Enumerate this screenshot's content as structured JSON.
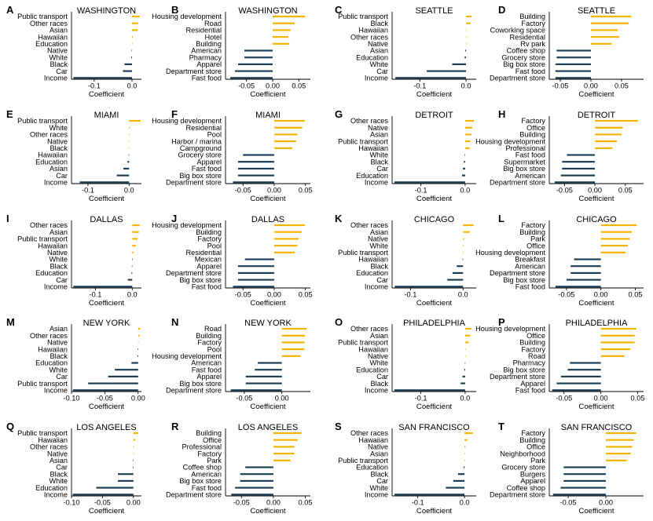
{
  "colors": {
    "positive": "#f5b400",
    "negative": "#1d3f55",
    "axis": "#000000",
    "text": "#000000"
  },
  "chart_data": [
    {
      "letter": "A",
      "title": "WASHINGTON",
      "type": "bar",
      "xlabel": "Coefficient",
      "xlim": [
        -0.16,
        0.025
      ],
      "ticks": [
        -0.1,
        0.0
      ],
      "tick_labels": [
        "-0.1",
        "0.0"
      ],
      "categories": [
        "Public transport",
        "Other races",
        "Asian",
        "Hawaiian",
        "Education",
        "Native",
        "White",
        "Black",
        "Car",
        "Income"
      ],
      "values": [
        0.02,
        0.016,
        0.015,
        0.002,
        0.001,
        -0.001,
        -0.002,
        -0.02,
        -0.024,
        -0.155
      ]
    },
    {
      "letter": "B",
      "title": "WASHINGTON",
      "type": "bar",
      "xlabel": "Coefficient",
      "xlim": [
        -0.09,
        0.072
      ],
      "ticks": [
        -0.05,
        0.0,
        0.05
      ],
      "tick_labels": [
        "-0.05",
        "0.00",
        "0.05"
      ],
      "categories": [
        "Housing development",
        "Road",
        "Residential",
        "Hotel",
        "Building",
        "American",
        "Pharmacy",
        "Apparel",
        "Department store",
        "Fast food"
      ],
      "values": [
        0.062,
        0.042,
        0.034,
        0.03,
        0.032,
        -0.054,
        -0.054,
        -0.066,
        -0.072,
        -0.081
      ]
    },
    {
      "letter": "C",
      "title": "SEATTLE",
      "type": "bar",
      "xlabel": "Coefficient",
      "xlim": [
        -0.16,
        0.022
      ],
      "ticks": [
        -0.1,
        0.0
      ],
      "tick_labels": [
        "-0.1",
        "0.0"
      ],
      "categories": [
        "Public transport",
        "Black",
        "Hawaiian",
        "Other races",
        "Native",
        "Asian",
        "Education",
        "White",
        "Car",
        "Income"
      ],
      "values": [
        0.012,
        0.01,
        0.001,
        0.0005,
        0.0,
        -0.002,
        -0.003,
        -0.03,
        -0.085,
        -0.153
      ]
    },
    {
      "letter": "D",
      "title": "SEATTLE",
      "type": "bar",
      "xlabel": "Coefficient",
      "xlim": [
        -0.068,
        0.086
      ],
      "ticks": [
        -0.05,
        0.0,
        0.05
      ],
      "tick_labels": [
        "-0.05",
        "0.00",
        "0.05"
      ],
      "categories": [
        "Building",
        "Factory",
        "Coworking space",
        "Residential",
        "Rv park",
        "Coffee shop",
        "Grocery store",
        "Big box store",
        "Fast food",
        "Department store"
      ],
      "values": [
        0.066,
        0.062,
        0.044,
        0.046,
        0.034,
        -0.056,
        -0.056,
        -0.058,
        -0.058,
        -0.058
      ]
    },
    {
      "letter": "E",
      "title": "MIAMI",
      "type": "bar",
      "xlabel": "Coefficient",
      "xlim": [
        -0.14,
        0.03
      ],
      "ticks": [
        -0.1,
        0.0
      ],
      "tick_labels": [
        "-0.1",
        "0.0"
      ],
      "categories": [
        "Public transport",
        "White",
        "Other races",
        "Native",
        "Black",
        "Hawaiian",
        "Education",
        "Asian",
        "Car",
        "Income"
      ],
      "values": [
        0.028,
        0.002,
        0.0015,
        0.001,
        0.0005,
        -0.001,
        -0.004,
        -0.014,
        -0.03,
        -0.12
      ]
    },
    {
      "letter": "F",
      "title": "MIAMI",
      "type": "bar",
      "xlabel": "Coefficient",
      "xlim": [
        -0.078,
        0.058
      ],
      "ticks": [
        -0.05,
        0.0,
        0.05
      ],
      "tick_labels": [
        "-0.05",
        "0.00",
        "0.05"
      ],
      "categories": [
        "Housing development",
        "Residential",
        "Pool",
        "Harbor / marina",
        "Campground",
        "Grocery store",
        "Apparel",
        "Fast food",
        "Big box store",
        "Department store"
      ],
      "values": [
        0.049,
        0.045,
        0.037,
        0.035,
        0.029,
        -0.05,
        -0.058,
        -0.058,
        -0.058,
        -0.066
      ]
    },
    {
      "letter": "G",
      "title": "DETROIT",
      "type": "bar",
      "xlabel": "Coefficient",
      "xlim": [
        -0.165,
        0.025
      ],
      "ticks": [
        -0.1,
        0.0
      ],
      "tick_labels": [
        "-0.1",
        "0.0"
      ],
      "categories": [
        "Other races",
        "Native",
        "Asian",
        "Public transport",
        "Hawaiian",
        "White",
        "Black",
        "Car",
        "Education",
        "Income"
      ],
      "values": [
        0.02,
        0.016,
        0.014,
        0.012,
        0.01,
        -0.001,
        -0.003,
        -0.005,
        -0.007,
        -0.16
      ]
    },
    {
      "letter": "H",
      "title": "DETROIT",
      "type": "bar",
      "xlabel": "Coefficient",
      "xlim": [
        -0.075,
        0.08
      ],
      "ticks": [
        -0.05,
        0.0,
        0.05
      ],
      "tick_labels": [
        "-0.05",
        "0.00",
        "0.05"
      ],
      "categories": [
        "Factory",
        "Office",
        "Building",
        "Housing development",
        "Professional",
        "Fast food",
        "Supermarket",
        "Big box store",
        "American",
        "Department store"
      ],
      "values": [
        0.071,
        0.046,
        0.044,
        0.036,
        0.029,
        -0.046,
        -0.054,
        -0.054,
        -0.056,
        -0.066
      ]
    },
    {
      "letter": "I",
      "title": "DALLAS",
      "type": "bar",
      "xlabel": "Coefficient",
      "xlim": [
        -0.165,
        0.025
      ],
      "ticks": [
        -0.1,
        0.0
      ],
      "tick_labels": [
        "-0.1",
        "0.0"
      ],
      "categories": [
        "Other races",
        "Asian",
        "Public transport",
        "Hawaiian",
        "Native",
        "White",
        "Black",
        "Education",
        "Car",
        "Income"
      ],
      "values": [
        0.02,
        0.018,
        0.014,
        0.01,
        0.004,
        -0.0005,
        -0.001,
        -0.002,
        -0.012,
        -0.16
      ]
    },
    {
      "letter": "J",
      "title": "DALLAS",
      "type": "bar",
      "xlabel": "Coefficient",
      "xlim": [
        -0.078,
        0.058
      ],
      "ticks": [
        -0.05,
        0.0,
        0.05
      ],
      "tick_labels": [
        "-0.05",
        "0.00",
        "0.05"
      ],
      "categories": [
        "Housing development",
        "Building",
        "Factory",
        "Pool",
        "Residential",
        "Mexican",
        "Apparel",
        "Department store",
        "Big box store",
        "Fast food"
      ],
      "values": [
        0.049,
        0.044,
        0.039,
        0.037,
        0.033,
        -0.047,
        -0.058,
        -0.058,
        -0.058,
        -0.066
      ]
    },
    {
      "letter": "K",
      "title": "CHICAGO",
      "type": "bar",
      "xlabel": "Coefficient",
      "xlim": [
        -0.135,
        0.025
      ],
      "ticks": [
        -0.1,
        0.0
      ],
      "tick_labels": [
        "-0.1",
        "0.0"
      ],
      "categories": [
        "Other races",
        "Asian",
        "Native",
        "White",
        "Public transport",
        "Hawaiian",
        "Black",
        "Education",
        "Car",
        "Income"
      ],
      "values": [
        0.02,
        0.013,
        0.002,
        0.001,
        0.0005,
        -0.001,
        -0.012,
        -0.02,
        -0.03,
        -0.13
      ]
    },
    {
      "letter": "L",
      "title": "CHICAGO",
      "type": "bar",
      "xlabel": "Coefficient",
      "xlim": [
        -0.075,
        0.062
      ],
      "ticks": [
        -0.05,
        0.0,
        0.05
      ],
      "tick_labels": [
        "-0.05",
        "0.00",
        "0.05"
      ],
      "categories": [
        "Factory",
        "Building",
        "Park",
        "Office",
        "Housing development",
        "Breakfast",
        "American",
        "Department store",
        "Big box store",
        "Fast food"
      ],
      "values": [
        0.052,
        0.045,
        0.042,
        0.039,
        0.036,
        -0.039,
        -0.044,
        -0.044,
        -0.05,
        -0.066
      ]
    },
    {
      "letter": "M",
      "title": "NEW YORK",
      "type": "bar",
      "xlabel": "Coefficient",
      "xlim": [
        -0.1,
        0.005
      ],
      "ticks": [
        -0.1,
        -0.05,
        0.0
      ],
      "tick_labels": [
        "-0.10",
        "-0.05",
        "0.00"
      ],
      "categories": [
        "Asian",
        "Other races",
        "Native",
        "Hawaiian",
        "Black",
        "Education",
        "White",
        "Car",
        "Public transport",
        "Income"
      ],
      "values": [
        0.003,
        0.002,
        0.0,
        -0.0005,
        -0.001,
        -0.01,
        -0.035,
        -0.045,
        -0.075,
        -0.098
      ]
    },
    {
      "letter": "N",
      "title": "NEW YORK",
      "type": "bar",
      "xlabel": "Coefficient",
      "xlim": [
        -0.075,
        0.038
      ],
      "ticks": [
        -0.05,
        0.0
      ],
      "tick_labels": [
        "-0.05",
        "0.00"
      ],
      "categories": [
        "Road",
        "Building",
        "Factory",
        "Pool",
        "Housing development",
        "American",
        "Fast food",
        "Apparel",
        "Big box store",
        "Department store"
      ],
      "values": [
        0.033,
        0.031,
        0.03,
        0.03,
        0.025,
        -0.032,
        -0.036,
        -0.048,
        -0.048,
        -0.068
      ]
    },
    {
      "letter": "O",
      "title": "PHILADELPHIA",
      "type": "bar",
      "xlabel": "Coefficient",
      "xlim": [
        -0.165,
        0.025
      ],
      "ticks": [
        -0.1,
        0.0
      ],
      "tick_labels": [
        "-0.1",
        "0.0"
      ],
      "categories": [
        "Other races",
        "Asian",
        "Public transport",
        "Hawaiian",
        "Native",
        "White",
        "Education",
        "Car",
        "Black",
        "Income"
      ],
      "values": [
        0.014,
        0.012,
        0.008,
        0.001,
        0.0005,
        -0.0005,
        -0.002,
        -0.006,
        -0.01,
        -0.16
      ]
    },
    {
      "letter": "P",
      "title": "PHILADELPHIA",
      "type": "bar",
      "xlabel": "Coefficient",
      "xlim": [
        -0.07,
        0.058
      ],
      "ticks": [
        -0.05,
        0.0,
        0.05
      ],
      "tick_labels": [
        "-0.05",
        "0.00",
        "0.05"
      ],
      "categories": [
        "Housing development",
        "Office",
        "Building",
        "Factory",
        "Road",
        "Pharmacy",
        "Big box store",
        "Department store",
        "Apparel",
        "Fast food"
      ],
      "values": [
        0.048,
        0.046,
        0.046,
        0.04,
        0.032,
        -0.042,
        -0.045,
        -0.054,
        -0.06,
        -0.066
      ]
    },
    {
      "letter": "Q",
      "title": "LOS ANGELES",
      "type": "bar",
      "xlabel": "Coefficient",
      "xlim": [
        -0.1,
        0.013
      ],
      "ticks": [
        -0.1,
        -0.05,
        0.0
      ],
      "tick_labels": [
        "-0.10",
        "-0.05",
        "0.00"
      ],
      "categories": [
        "Public transport",
        "Hawaiian",
        "Other races",
        "Native",
        "Asian",
        "Car",
        "Black",
        "White",
        "Education",
        "Income"
      ],
      "values": [
        0.008,
        0.003,
        0.001,
        0.0005,
        -0.0005,
        -0.001,
        -0.025,
        -0.025,
        -0.06,
        -0.098
      ]
    },
    {
      "letter": "R",
      "title": "LOS ANGELES",
      "type": "bar",
      "xlabel": "Coefficient",
      "xlim": [
        -0.075,
        0.058
      ],
      "ticks": [
        -0.05,
        0.0,
        0.05
      ],
      "tick_labels": [
        "-0.05",
        "0.00",
        "0.05"
      ],
      "categories": [
        "Building",
        "Office",
        "Professional",
        "Factory",
        "Park",
        "Coffee shop",
        "American",
        "Big box store",
        "Fast food",
        "Department store"
      ],
      "values": [
        0.044,
        0.038,
        0.033,
        0.033,
        0.027,
        -0.044,
        -0.052,
        -0.052,
        -0.06,
        -0.066
      ]
    },
    {
      "letter": "S",
      "title": "SAN FRANCISCO",
      "type": "bar",
      "xlabel": "Coefficient",
      "xlim": [
        -0.155,
        0.025
      ],
      "ticks": [
        -0.1,
        0.0
      ],
      "tick_labels": [
        "-0.1",
        "0.0"
      ],
      "categories": [
        "Other races",
        "Hawaiian",
        "Native",
        "Asian",
        "Public transport",
        "Education",
        "Black",
        "Car",
        "White",
        "Income"
      ],
      "values": [
        0.018,
        0.006,
        0.002,
        0.001,
        0.0005,
        -0.002,
        -0.014,
        -0.024,
        -0.04,
        -0.15
      ]
    },
    {
      "letter": "T",
      "title": "SAN FRANCISCO",
      "type": "bar",
      "xlabel": "Coefficient",
      "xlim": [
        -0.075,
        0.05
      ],
      "ticks": [
        -0.05,
        0.0
      ],
      "tick_labels": [
        "-0.05",
        "0.00"
      ],
      "categories": [
        "Factory",
        "Building",
        "Office",
        "Neighborhood",
        "Park",
        "Grocery store",
        "Burgers",
        "Apparel",
        "Coffee shop",
        "Department store"
      ],
      "values": [
        0.04,
        0.037,
        0.035,
        0.033,
        0.028,
        -0.056,
        -0.056,
        -0.056,
        -0.06,
        -0.07
      ]
    }
  ]
}
